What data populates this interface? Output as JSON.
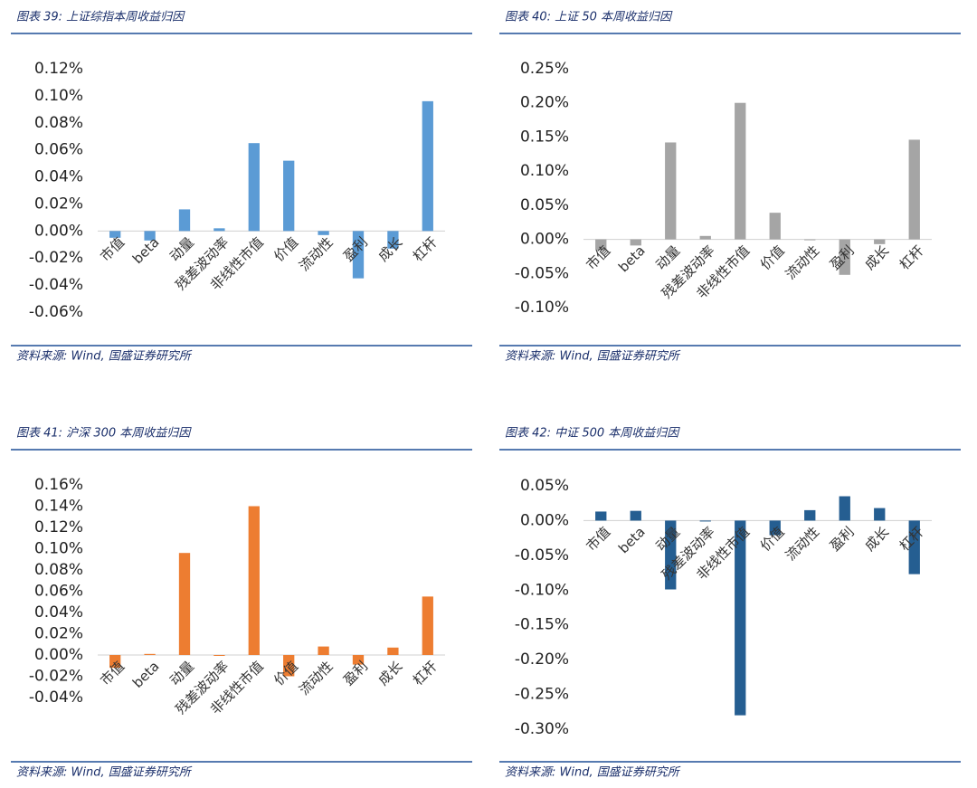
{
  "chart_data": [
    {
      "type": "bar",
      "title": "图表 39:  上证综指本周收益归因",
      "source": "资料来源:  Wind,  国盛证券研究所",
      "categories": [
        "市值",
        "beta",
        "动量",
        "残差波动率",
        "非线性市值",
        "价值",
        "流动性",
        "盈利",
        "成长",
        "杠杆"
      ],
      "values": [
        -0.005,
        -0.007,
        0.016,
        0.002,
        0.065,
        0.052,
        -0.003,
        -0.035,
        -0.013,
        0.096
      ],
      "color": "#5b9bd5",
      "ylim": [
        -0.06,
        0.12
      ],
      "yticks": [
        {
          "value": -0.06,
          "label": "-0.06%"
        },
        {
          "value": -0.04,
          "label": "-0.04%"
        },
        {
          "value": -0.02,
          "label": "-0.02%"
        },
        {
          "value": 0,
          "label": "0.00%"
        },
        {
          "value": 0.02,
          "label": "0.02%"
        },
        {
          "value": 0.04,
          "label": "0.04%"
        },
        {
          "value": 0.06,
          "label": "0.06%"
        },
        {
          "value": 0.08,
          "label": "0.08%"
        },
        {
          "value": 0.1,
          "label": "0.10%"
        },
        {
          "value": 0.12,
          "label": "0.12%"
        }
      ]
    },
    {
      "type": "bar",
      "title": "图表 40:  上证 50 本周收益归因",
      "source": "资料来源:  Wind,  国盛证券研究所",
      "categories": [
        "市值",
        "beta",
        "动量",
        "残差波动率",
        "非线性市值",
        "价值",
        "流动性",
        "盈利",
        "成长",
        "杠杆"
      ],
      "values": [
        -0.016,
        -0.009,
        0.142,
        0.005,
        0.2,
        0.039,
        -0.001,
        -0.052,
        -0.007,
        0.146
      ],
      "color": "#a5a5a5",
      "ylim": [
        -0.1,
        0.25
      ],
      "yticks": [
        {
          "value": -0.1,
          "label": "-0.10%"
        },
        {
          "value": -0.05,
          "label": "-0.05%"
        },
        {
          "value": 0,
          "label": "0.00%"
        },
        {
          "value": 0.05,
          "label": "0.05%"
        },
        {
          "value": 0.1,
          "label": "0.10%"
        },
        {
          "value": 0.15,
          "label": "0.15%"
        },
        {
          "value": 0.2,
          "label": "0.20%"
        },
        {
          "value": 0.25,
          "label": "0.25%"
        }
      ]
    },
    {
      "type": "bar",
      "title": "图表 41:  沪深 300 本周收益归因",
      "source": "资料来源:  Wind,  国盛证券研究所",
      "categories": [
        "市值",
        "beta",
        "动量",
        "残差波动率",
        "非线性市值",
        "价值",
        "流动性",
        "盈利",
        "成长",
        "杠杆"
      ],
      "values": [
        -0.012,
        0.001,
        0.096,
        0,
        0.14,
        -0.02,
        0.008,
        -0.009,
        0.007,
        0.055
      ],
      "color": "#ed7d31",
      "ylim": [
        -0.04,
        0.16
      ],
      "yticks": [
        {
          "value": -0.04,
          "label": "-0.04%"
        },
        {
          "value": -0.02,
          "label": "-0.02%"
        },
        {
          "value": 0,
          "label": "0.00%"
        },
        {
          "value": 0.02,
          "label": "0.02%"
        },
        {
          "value": 0.04,
          "label": "0.04%"
        },
        {
          "value": 0.06,
          "label": "0.06%"
        },
        {
          "value": 0.08,
          "label": "0.08%"
        },
        {
          "value": 0.1,
          "label": "0.10%"
        },
        {
          "value": 0.12,
          "label": "0.12%"
        },
        {
          "value": 0.14,
          "label": "0.14%"
        },
        {
          "value": 0.16,
          "label": "0.16%"
        }
      ]
    },
    {
      "type": "bar",
      "title": "图表 42:  中证 500 本周收益归因",
      "source": "资料来源:  Wind,  国盛证券研究所",
      "categories": [
        "市值",
        "beta",
        "动量",
        "残差波动率",
        "非线性市值",
        "价值",
        "流动性",
        "盈利",
        "成长",
        "杠杆"
      ],
      "values": [
        0.013,
        0.014,
        -0.099,
        0,
        -0.28,
        -0.021,
        0.015,
        0.035,
        0.018,
        -0.077
      ],
      "color": "#255e91",
      "ylim": [
        -0.3,
        0.05
      ],
      "yticks": [
        {
          "value": -0.3,
          "label": "-0.30%"
        },
        {
          "value": -0.25,
          "label": "-0.25%"
        },
        {
          "value": -0.2,
          "label": "-0.20%"
        },
        {
          "value": -0.15,
          "label": "-0.15%"
        },
        {
          "value": -0.1,
          "label": "-0.10%"
        },
        {
          "value": -0.05,
          "label": "-0.05%"
        },
        {
          "value": 0,
          "label": "0.00%"
        },
        {
          "value": 0.05,
          "label": "0.05%"
        }
      ]
    }
  ]
}
